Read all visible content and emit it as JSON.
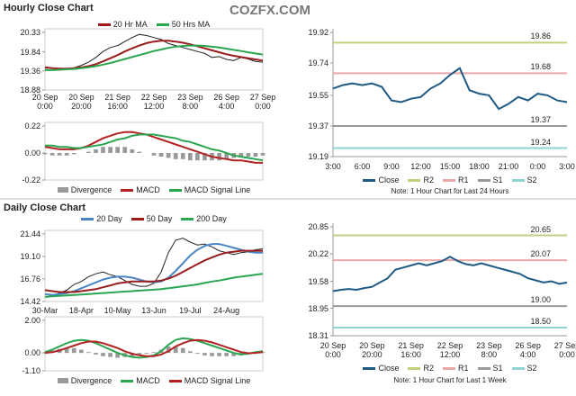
{
  "header": {
    "brand": "COZFX.COM"
  },
  "chart_data": [
    {
      "type": "line",
      "title": "Hourly Close Chart",
      "categories": [
        "20 Sep\n0:00",
        null,
        null,
        null,
        null,
        "20 Sep\n20:00",
        null,
        null,
        null,
        null,
        "21 Sep\n16:00",
        null,
        null,
        null,
        null,
        "22 Sep\n12:00",
        null,
        null,
        null,
        null,
        "23 Sep\n8:00",
        null,
        null,
        null,
        null,
        "26 Sep\n4:00",
        null,
        null,
        null,
        null,
        "27 Sep\n0:00"
      ],
      "ylim": [
        18.88,
        20.33
      ],
      "yticks": [
        20.33,
        19.84,
        19.36,
        18.88
      ],
      "series": [
        {
          "name": "Close",
          "color": "#222222",
          "legend": false,
          "values": [
            19.4,
            19.38,
            19.42,
            19.4,
            19.44,
            19.5,
            19.58,
            19.7,
            19.85,
            19.95,
            20.0,
            20.1,
            20.2,
            20.28,
            20.25,
            20.2,
            20.15,
            20.05,
            20.0,
            19.95,
            19.9,
            19.85,
            19.8,
            19.7,
            19.72,
            19.65,
            19.62,
            19.7,
            19.66,
            19.6,
            19.58
          ]
        },
        {
          "name": "20 Hr MA",
          "color": "#9b1c1c",
          "values": [
            19.45,
            19.43,
            19.42,
            19.42,
            19.43,
            19.45,
            19.48,
            19.53,
            19.6,
            19.68,
            19.76,
            19.85,
            19.93,
            20.0,
            20.06,
            20.1,
            20.12,
            20.12,
            20.1,
            20.07,
            20.03,
            19.98,
            19.93,
            19.88,
            19.83,
            19.78,
            19.74,
            19.71,
            19.68,
            19.65,
            19.62
          ]
        },
        {
          "name": "50 Hrs MA",
          "color": "#2aa650",
          "values": [
            19.38,
            19.38,
            19.39,
            19.4,
            19.41,
            19.43,
            19.45,
            19.48,
            19.52,
            19.56,
            19.61,
            19.66,
            19.71,
            19.76,
            19.81,
            19.86,
            19.9,
            19.94,
            19.97,
            19.99,
            20.0,
            20.0,
            19.99,
            19.97,
            19.95,
            19.92,
            19.89,
            19.86,
            19.83,
            19.8,
            19.77
          ]
        }
      ]
    },
    {
      "type": "line",
      "ylim": [
        -0.22,
        0.22
      ],
      "yticks": [
        0.22,
        {
          "value": 0,
          "label": "0.00"
        },
        -0.22
      ],
      "series": [
        {
          "name": "Divergence",
          "type": "bar",
          "color": "#999999",
          "values": [
            -0.01,
            -0.02,
            -0.02,
            -0.02,
            -0.01,
            0,
            0.01,
            0.03,
            0.05,
            0.05,
            0.05,
            0.05,
            0.03,
            0.01,
            0,
            -0.02,
            -0.03,
            -0.04,
            -0.05,
            -0.05,
            -0.06,
            -0.06,
            -0.06,
            -0.06,
            -0.06,
            -0.05,
            -0.04,
            -0.03,
            -0.03,
            -0.03,
            -0.02
          ]
        },
        {
          "name": "MACD",
          "color": "#b22222",
          "values": [
            0.05,
            0.04,
            0.03,
            0.03,
            0.03,
            0.04,
            0.06,
            0.09,
            0.12,
            0.14,
            0.16,
            0.17,
            0.17,
            0.16,
            0.15,
            0.13,
            0.11,
            0.09,
            0.07,
            0.05,
            0.03,
            0.01,
            -0.01,
            -0.03,
            -0.04,
            -0.05,
            -0.06,
            -0.06,
            -0.07,
            -0.08,
            -0.08
          ]
        },
        {
          "name": "MACD Signal Line",
          "color": "#2aa650",
          "values": [
            0.06,
            0.06,
            0.05,
            0.05,
            0.04,
            0.04,
            0.05,
            0.06,
            0.07,
            0.09,
            0.11,
            0.12,
            0.14,
            0.15,
            0.15,
            0.15,
            0.14,
            0.13,
            0.12,
            0.1,
            0.09,
            0.07,
            0.05,
            0.03,
            0.02,
            0.0,
            -0.02,
            -0.03,
            -0.04,
            -0.05,
            -0.06
          ]
        }
      ]
    },
    {
      "type": "line",
      "note": "Note: 1 Hour Chart for Last 24 Hours",
      "categories": [
        "3:00",
        null,
        null,
        "6:00",
        null,
        null,
        "9:00",
        null,
        null,
        "12:00",
        null,
        null,
        "15:00",
        null,
        null,
        "18:00",
        null,
        null,
        "21:00",
        null,
        null,
        "0:00",
        null,
        null,
        "3:00"
      ],
      "ylim": [
        19.19,
        19.92
      ],
      "yticks": [
        19.92,
        19.74,
        19.55,
        19.37,
        19.19
      ],
      "series": [
        {
          "name": "Close",
          "color": "#1f5a84",
          "values": [
            19.59,
            19.61,
            19.62,
            19.61,
            19.62,
            19.6,
            19.52,
            19.51,
            19.53,
            19.54,
            19.59,
            19.62,
            19.67,
            19.71,
            19.58,
            19.56,
            19.55,
            19.47,
            19.5,
            19.54,
            19.52,
            19.56,
            19.55,
            19.52,
            19.51
          ]
        }
      ],
      "levels": {
        "names": [
          "R2",
          "R1",
          "S1",
          "S2"
        ],
        "colors": [
          "#c3cf7a",
          "#e8a8a8",
          "#999999",
          "#8fd3d3"
        ],
        "values": [
          19.86,
          19.68,
          19.37,
          19.24
        ]
      }
    },
    {
      "type": "line",
      "title": "Daily Close Chart",
      "categories": [
        "30-Mar",
        null,
        null,
        null,
        null,
        "18-Apr",
        null,
        null,
        null,
        null,
        "10-May",
        null,
        null,
        null,
        null,
        "13-Jun",
        null,
        null,
        null,
        null,
        "19-Jul",
        null,
        null,
        null,
        null,
        "24-Aug",
        null,
        null,
        null,
        null,
        null
      ],
      "ylim": [
        14.42,
        21.44
      ],
      "yticks": [
        21.44,
        {
          "value": 19.1,
          "label": "19.10"
        },
        16.76,
        14.42
      ],
      "series": [
        {
          "name": "Close",
          "color": "#222222",
          "legend": false,
          "values": [
            14.9,
            15.0,
            15.3,
            15.6,
            16.2,
            16.5,
            17.0,
            17.3,
            17.5,
            17.2,
            17.0,
            16.6,
            16.2,
            16.0,
            16.0,
            16.3,
            17.5,
            19.5,
            20.8,
            21.0,
            20.6,
            20.3,
            20.4,
            20.1,
            19.7,
            19.5,
            19.3,
            19.5,
            19.6,
            19.8,
            19.9
          ]
        },
        {
          "name": "20 Day",
          "color": "#4a86c5",
          "values": [
            15.2,
            15.1,
            15.2,
            15.3,
            15.5,
            15.8,
            16.1,
            16.4,
            16.7,
            16.9,
            17.0,
            17.0,
            16.9,
            16.7,
            16.5,
            16.4,
            16.5,
            16.9,
            17.6,
            18.4,
            19.2,
            19.8,
            20.2,
            20.4,
            20.4,
            20.2,
            20.0,
            19.8,
            19.6,
            19.5,
            19.5
          ]
        },
        {
          "name": "50 Day",
          "color": "#9b1c1c",
          "values": [
            15.6,
            15.5,
            15.4,
            15.4,
            15.4,
            15.5,
            15.6,
            15.7,
            15.9,
            16.1,
            16.3,
            16.4,
            16.5,
            16.5,
            16.5,
            16.5,
            16.6,
            16.8,
            17.1,
            17.5,
            17.9,
            18.3,
            18.7,
            19.0,
            19.3,
            19.5,
            19.6,
            19.7,
            19.7,
            19.7,
            19.7
          ]
        },
        {
          "name": "200 Day",
          "color": "#2aa650",
          "values": [
            14.9,
            14.95,
            15.0,
            15.05,
            15.1,
            15.15,
            15.2,
            15.25,
            15.3,
            15.35,
            15.4,
            15.45,
            15.5,
            15.55,
            15.6,
            15.65,
            15.7,
            15.8,
            15.9,
            16.0,
            16.1,
            16.2,
            16.35,
            16.5,
            16.6,
            16.75,
            16.9,
            17.0,
            17.1,
            17.2,
            17.3
          ]
        }
      ]
    },
    {
      "type": "line",
      "ylim": [
        -1.1,
        2
      ],
      "yticks": [
        {
          "value": 2,
          "label": "2.00"
        },
        {
          "value": 0,
          "label": "0.00"
        },
        {
          "value": -1.1,
          "label": "-1.10"
        }
      ],
      "series": [
        {
          "name": "Divergence",
          "type": "bar",
          "color": "#999999",
          "values": [
            0.05,
            0.15,
            0.25,
            0.3,
            0.3,
            0.2,
            0.05,
            -0.1,
            -0.2,
            -0.25,
            -0.3,
            -0.25,
            -0.2,
            -0.15,
            -0.05,
            0.05,
            0.2,
            0.4,
            0.4,
            0.3,
            0.1,
            -0.05,
            -0.15,
            -0.2,
            -0.2,
            -0.2,
            -0.2,
            -0.15,
            -0.03,
            0.05,
            0.05
          ]
        },
        {
          "name": "MACD",
          "color": "#2aa650",
          "values": [
            0.05,
            0.2,
            0.4,
            0.6,
            0.75,
            0.8,
            0.75,
            0.6,
            0.4,
            0.2,
            0.0,
            -0.15,
            -0.25,
            -0.3,
            -0.25,
            -0.15,
            0.1,
            0.5,
            0.8,
            0.9,
            0.85,
            0.75,
            0.6,
            0.45,
            0.3,
            0.15,
            0.0,
            -0.1,
            -0.05,
            0.05,
            0.1
          ]
        },
        {
          "name": "MACD Signal Line",
          "color": "#b22222",
          "values": [
            0.0,
            0.05,
            0.15,
            0.3,
            0.45,
            0.6,
            0.7,
            0.7,
            0.6,
            0.45,
            0.3,
            0.1,
            -0.05,
            -0.15,
            -0.2,
            -0.2,
            -0.1,
            0.1,
            0.4,
            0.6,
            0.75,
            0.8,
            0.75,
            0.65,
            0.5,
            0.35,
            0.2,
            0.05,
            -0.02,
            0.0,
            0.05
          ]
        }
      ]
    },
    {
      "type": "line",
      "note": "Note: 1 Hour Chart for Last 1 Week",
      "categories": [
        "20 Sep\n0:00",
        null,
        null,
        null,
        null,
        "20 Sep\n20:00",
        null,
        null,
        null,
        null,
        "21 Sep\n16:00",
        null,
        null,
        null,
        null,
        "22 Sep\n12:00",
        null,
        null,
        null,
        null,
        "23 Sep\n8:00",
        null,
        null,
        null,
        null,
        "26 Sep\n4:00",
        null,
        null,
        null,
        null,
        "27 Sep\n0:00"
      ],
      "ylim": [
        18.31,
        20.85
      ],
      "yticks": [
        20.85,
        20.22,
        19.58,
        18.95,
        18.31
      ],
      "series": [
        {
          "name": "Close",
          "color": "#1f5a84",
          "values": [
            19.35,
            19.38,
            19.4,
            19.38,
            19.42,
            19.45,
            19.55,
            19.65,
            19.85,
            19.9,
            19.95,
            20.0,
            19.95,
            20.0,
            20.05,
            20.15,
            20.05,
            19.98,
            19.95,
            20.0,
            19.95,
            19.9,
            19.85,
            19.8,
            19.75,
            19.65,
            19.6,
            19.55,
            19.58,
            19.52,
            19.55
          ]
        }
      ],
      "levels": {
        "names": [
          "R2",
          "R1",
          "S1",
          "S2"
        ],
        "colors": [
          "#c3cf7a",
          "#e8a8a8",
          "#999999",
          "#8fd3d3"
        ],
        "values": [
          20.65,
          20.07,
          19.0,
          18.5
        ],
        "value_labels": [
          "20.65",
          "20.07",
          "19.00",
          "18.50"
        ]
      }
    }
  ]
}
